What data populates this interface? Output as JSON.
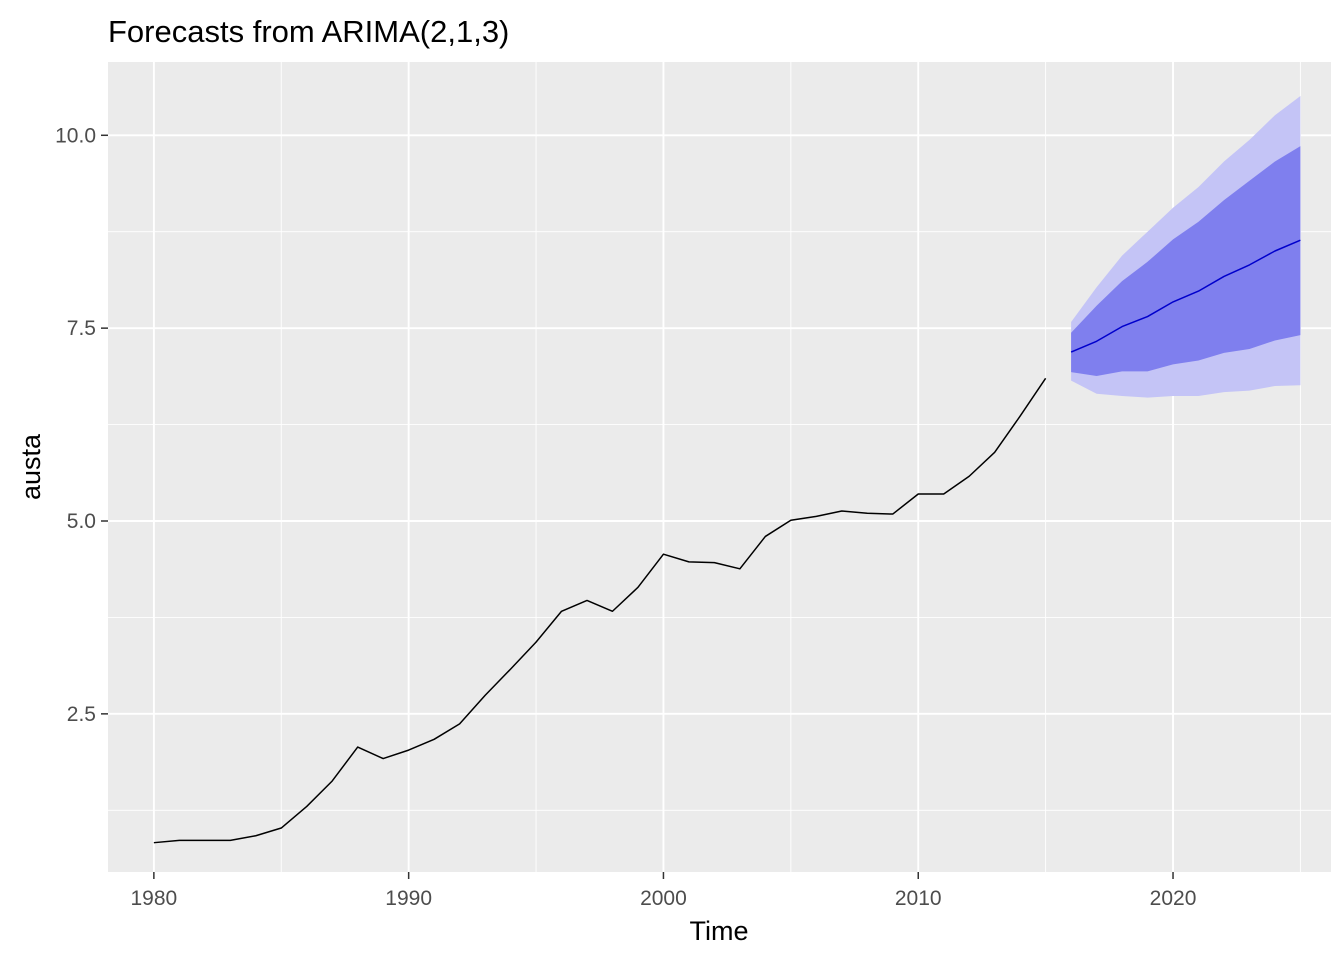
{
  "chart_data": {
    "type": "line",
    "title": "Forecasts from ARIMA(2,1,3)",
    "xlabel": "Time",
    "ylabel": "austa",
    "xlim": [
      1978.2,
      2026.2
    ],
    "ylim": [
      0.45,
      10.95
    ],
    "x_ticks": [
      1980,
      1990,
      2000,
      2010,
      2020
    ],
    "x_tick_labels": [
      "1980",
      "1990",
      "2000",
      "2010",
      "2020"
    ],
    "y_ticks": [
      2.5,
      5.0,
      7.5,
      10.0
    ],
    "y_tick_labels": [
      "2.5",
      "5.0",
      "7.5",
      "10.0"
    ],
    "grid": true,
    "legend": "none",
    "background": "#ebebeb",
    "colors": {
      "history": "#000000",
      "forecast": "#0000cc",
      "band80": "#7f7fee",
      "band95": "#c4c4f6",
      "grid": "#ffffff"
    },
    "series": [
      {
        "role": "history",
        "x": [
          1980,
          1981,
          1982,
          1983,
          1984,
          1985,
          1986,
          1987,
          1988,
          1989,
          1990,
          1991,
          1992,
          1993,
          1994,
          1995,
          1996,
          1997,
          1998,
          1999,
          2000,
          2001,
          2002,
          2003,
          2004,
          2005,
          2006,
          2007,
          2008,
          2009,
          2010,
          2011,
          2012,
          2013,
          2014,
          2015
        ],
        "values": [
          0.83,
          0.86,
          0.86,
          0.86,
          0.92,
          1.02,
          1.3,
          1.63,
          2.07,
          1.92,
          2.03,
          2.17,
          2.37,
          2.74,
          3.08,
          3.43,
          3.83,
          3.97,
          3.83,
          4.14,
          4.57,
          4.47,
          4.46,
          4.38,
          4.8,
          5.01,
          5.06,
          5.13,
          5.1,
          5.09,
          5.35,
          5.35,
          5.58,
          5.89,
          6.36,
          6.85
        ]
      },
      {
        "role": "forecast",
        "x": [
          2016,
          2017,
          2018,
          2019,
          2020,
          2021,
          2022,
          2023,
          2024,
          2025
        ],
        "values": [
          7.19,
          7.33,
          7.52,
          7.65,
          7.84,
          7.98,
          8.17,
          8.32,
          8.5,
          8.64
        ],
        "lo80": [
          6.93,
          6.88,
          6.94,
          6.94,
          7.03,
          7.08,
          7.18,
          7.23,
          7.34,
          7.41
        ],
        "hi80": [
          7.44,
          7.79,
          8.11,
          8.36,
          8.65,
          8.88,
          9.16,
          9.41,
          9.66,
          9.86
        ],
        "lo95": [
          6.82,
          6.65,
          6.62,
          6.6,
          6.62,
          6.62,
          6.67,
          6.69,
          6.75,
          6.76
        ],
        "hi95": [
          7.58,
          8.03,
          8.44,
          8.75,
          9.06,
          9.33,
          9.66,
          9.94,
          10.26,
          10.51
        ]
      }
    ]
  }
}
